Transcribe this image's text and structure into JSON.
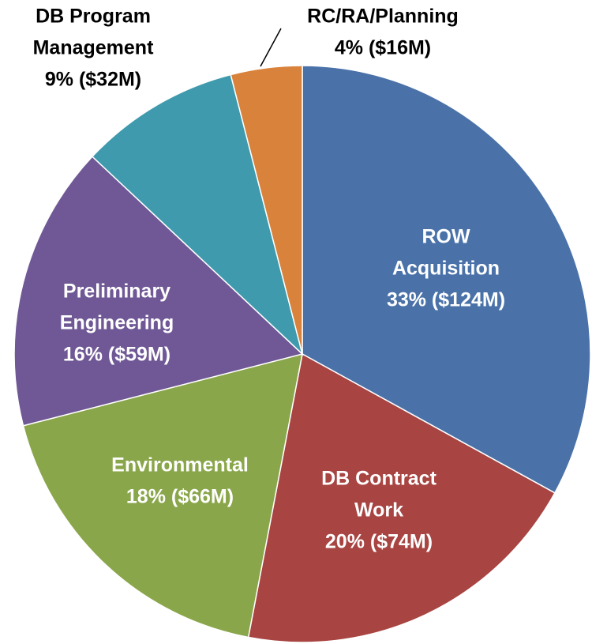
{
  "chart_data": {
    "type": "pie",
    "categories": [
      [
        "ROW",
        "Acquisition"
      ],
      [
        "DB Contract",
        "Work"
      ],
      [
        "Environmental"
      ],
      [
        "Preliminary",
        "Engineering"
      ],
      [
        "DB Program",
        "Management"
      ],
      [
        "RC/RA/Planning"
      ]
    ],
    "values": [
      33,
      20,
      18,
      16,
      9,
      4
    ],
    "value_labels": [
      "33% ($124M)",
      "20% ($74M)",
      "18% ($66M)",
      "16% ($59M)",
      "9% ($32M)",
      "4% ($16M)"
    ],
    "colors": [
      "#4a72a8",
      "#a84441",
      "#8aa64b",
      "#6f5895",
      "#3f9aad",
      "#d9823b"
    ]
  }
}
